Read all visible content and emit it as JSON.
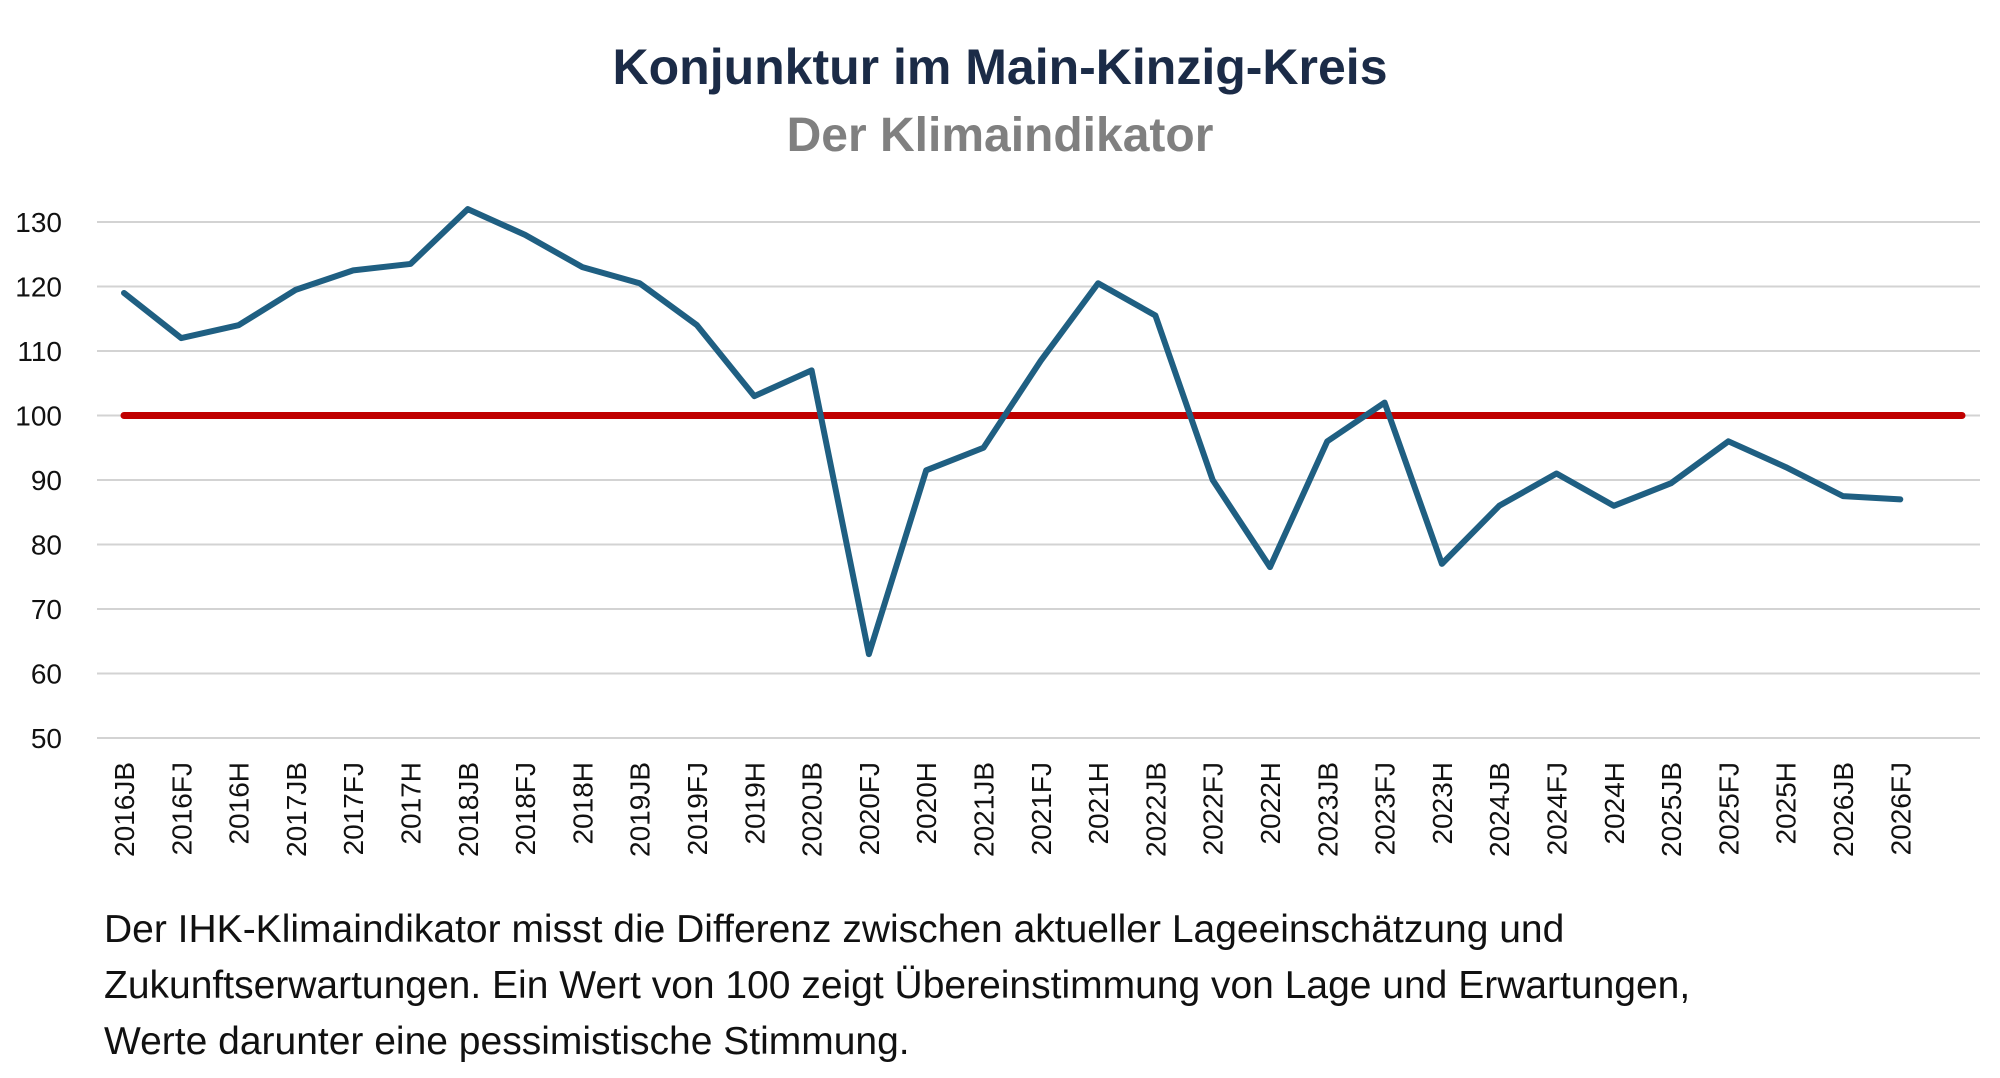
{
  "chart_data": {
    "type": "line",
    "title": "Konjunktur im Main-Kinzig-Kreis",
    "subtitle": "Der Klimaindikator",
    "xlabel": "",
    "ylabel": "",
    "ylim": [
      50,
      130
    ],
    "yticks": [
      130,
      120,
      110,
      100,
      90,
      80,
      70,
      60,
      50
    ],
    "grid": true,
    "categories": [
      "2016JB",
      "2016FJ",
      "2016H",
      "2017JB",
      "2017FJ",
      "2017H",
      "2018JB",
      "2018FJ",
      "2018H",
      "2019JB",
      "2019FJ",
      "2019H",
      "2020JB",
      "2020FJ",
      "2020H",
      "2021JB",
      "2021FJ",
      "2021H",
      "2022JB",
      "2022FJ",
      "2022H",
      "2023JB",
      "2023FJ",
      "2023H",
      "2024JB",
      "2024FJ",
      "2024H",
      "2025JB",
      "2025FJ",
      "2025H",
      "2026JB",
      "2026FJ"
    ],
    "series": [
      {
        "color": "#1f5f82",
        "values": [
          119,
          112,
          114,
          119.5,
          122.5,
          123.5,
          132,
          128,
          123,
          120.5,
          114,
          103,
          107,
          63,
          91.5,
          95,
          108.5,
          120.5,
          115.5,
          90,
          76.5,
          96,
          102,
          77,
          86,
          91,
          86,
          89.5,
          96,
          92,
          87.5,
          87
        ]
      }
    ],
    "reference_line": {
      "value": 100,
      "color": "#c00000"
    }
  },
  "caption": {
    "line1": "Der IHK-Klimaindikator misst die Differenz zwischen aktueller Lageeinschätzung und",
    "line2": "Zukunftserwartungen. Ein Wert von 100 zeigt Übereinstimmung von Lage und Erwartungen,",
    "line3": "Werte darunter eine pessimistische Stimmung."
  }
}
